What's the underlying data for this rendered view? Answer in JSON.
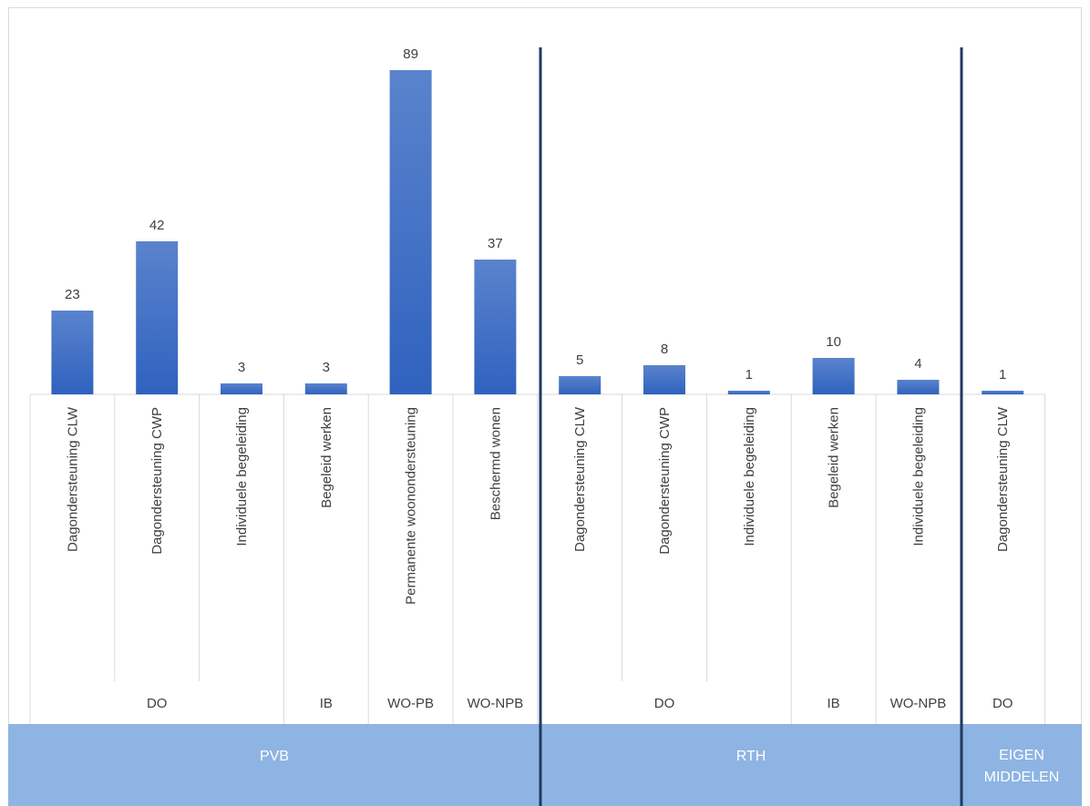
{
  "chart_data": {
    "type": "bar",
    "title": "",
    "ylim": [
      0,
      95
    ],
    "grid": false,
    "legend": "none",
    "bar_color_top": "#5a83cc",
    "bar_color_bottom": "#2f62bf",
    "separator_color": "#1f3a5f",
    "band_color": "#8eb4e3",
    "categories": [
      "Dagondersteuning CLW",
      "Dagondersteuning CWP",
      "Individuele begeleiding",
      "Begeleid werken",
      "Permanente woonondersteuning",
      "Beschermd wonen",
      "Dagondersteuning CLW",
      "Dagondersteuning CWP",
      "Individuele begeleiding",
      "Begeleid werken",
      "Individuele begeleiding",
      "Dagondersteuning CLW"
    ],
    "values": [
      23,
      42,
      3,
      3,
      89,
      37,
      5,
      8,
      1,
      10,
      4,
      1
    ],
    "subgroups": [
      {
        "label": "DO",
        "count": 3
      },
      {
        "label": "IB",
        "count": 1
      },
      {
        "label": "WO-PB",
        "count": 1
      },
      {
        "label": "WO-NPB",
        "count": 1
      },
      {
        "label": "DO",
        "count": 3
      },
      {
        "label": "IB",
        "count": 1
      },
      {
        "label": "WO-NPB",
        "count": 1
      },
      {
        "label": "DO",
        "count": 1
      }
    ],
    "groups": [
      {
        "label": "PVB",
        "count": 6
      },
      {
        "label": "RTH",
        "count": 5
      },
      {
        "label": "EIGEN MIDDELEN",
        "count": 1
      }
    ]
  }
}
